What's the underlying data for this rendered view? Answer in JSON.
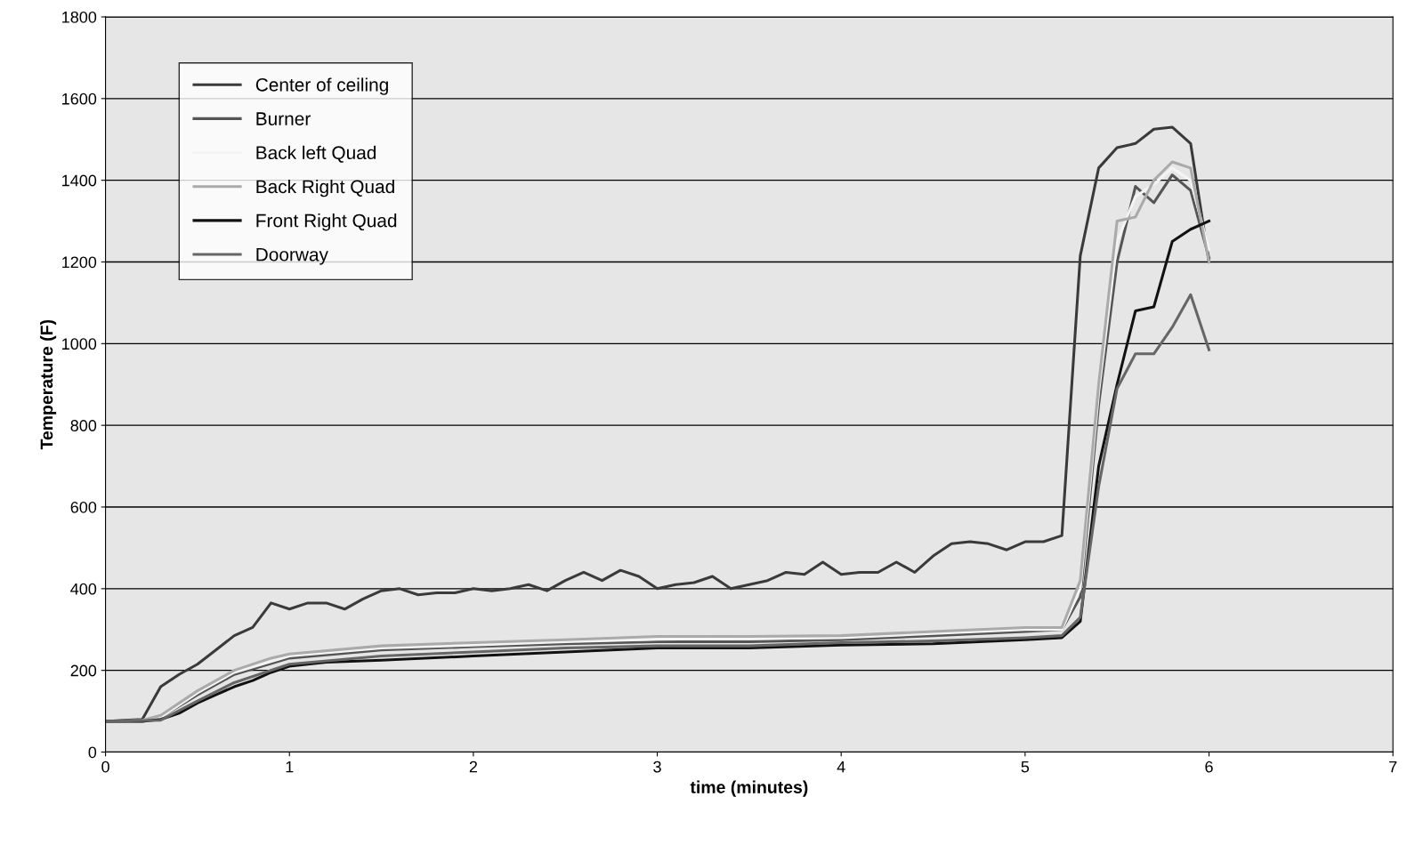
{
  "chart_data": {
    "type": "line",
    "xlabel": "time (minutes)",
    "ylabel": "Temperature (F)",
    "xlim": [
      0,
      7
    ],
    "xticks": [
      0,
      1,
      2,
      3,
      4,
      5,
      6,
      7
    ],
    "ylim": [
      0,
      1800
    ],
    "yticks": [
      0,
      200,
      400,
      600,
      800,
      1000,
      1200,
      1400,
      1600,
      1800
    ],
    "grid": "y",
    "legend": "top left",
    "marker": "none",
    "line_style": "solid",
    "series": [
      {
        "name": "Center of ceiling",
        "color": "#3a3a3a",
        "x": [
          0,
          0.1,
          0.2,
          0.3,
          0.4,
          0.5,
          0.6,
          0.7,
          0.8,
          0.9,
          1.0,
          1.1,
          1.2,
          1.3,
          1.4,
          1.5,
          1.6,
          1.7,
          1.8,
          1.9,
          2.0,
          2.1,
          2.2,
          2.3,
          2.4,
          2.5,
          2.6,
          2.7,
          2.8,
          2.9,
          3.0,
          3.1,
          3.2,
          3.3,
          3.4,
          3.5,
          3.6,
          3.7,
          3.8,
          3.9,
          4.0,
          4.1,
          4.2,
          4.3,
          4.4,
          4.5,
          4.6,
          4.7,
          4.8,
          4.9,
          5.0,
          5.1,
          5.2,
          5.3,
          5.4,
          5.5,
          5.6,
          5.7,
          5.8,
          5.9,
          6.0
        ],
        "values": [
          75,
          78,
          80,
          160,
          190,
          215,
          250,
          285,
          305,
          365,
          350,
          365,
          365,
          350,
          375,
          395,
          400,
          385,
          390,
          390,
          400,
          395,
          400,
          410,
          395,
          420,
          440,
          420,
          445,
          430,
          400,
          410,
          415,
          430,
          400,
          410,
          420,
          440,
          435,
          465,
          435,
          440,
          440,
          465,
          440,
          480,
          510,
          515,
          510,
          495,
          515,
          515,
          530,
          1215,
          1430,
          1480,
          1490,
          1525,
          1530,
          1490,
          1200
        ]
      },
      {
        "name": "Burner",
        "color": "#555555",
        "x": [
          0,
          0.2,
          0.3,
          0.5,
          0.7,
          1.0,
          1.5,
          2.0,
          2.5,
          3.0,
          3.5,
          4.0,
          4.5,
          5.0,
          5.2,
          5.3,
          5.4,
          5.5,
          5.6,
          5.7,
          5.8,
          5.9,
          6.0
        ],
        "values": [
          75,
          75,
          85,
          140,
          190,
          230,
          250,
          258,
          265,
          270,
          270,
          275,
          285,
          295,
          300,
          380,
          850,
          1200,
          1385,
          1345,
          1413,
          1375,
          1210
        ]
      },
      {
        "name": "Back left Quad",
        "color": "#f4f4f4",
        "x": [
          0,
          0.2,
          0.3,
          0.5,
          0.7,
          1.0,
          1.5,
          2.0,
          2.5,
          3.0,
          3.5,
          4.0,
          4.5,
          5.0,
          5.2,
          5.3,
          5.4,
          5.5,
          5.6,
          5.7,
          5.8,
          5.9,
          6.0
        ],
        "values": [
          75,
          75,
          85,
          145,
          195,
          235,
          255,
          262,
          270,
          276,
          278,
          280,
          290,
          300,
          300,
          400,
          880,
          1250,
          1360,
          1390,
          1430,
          1400,
          1230
        ]
      },
      {
        "name": "Back Right Quad",
        "color": "#aaaaaa",
        "x": [
          0,
          0.2,
          0.3,
          0.5,
          0.7,
          0.9,
          1.0,
          1.5,
          2.0,
          2.5,
          3.0,
          3.5,
          4.0,
          4.5,
          5.0,
          5.2,
          5.3,
          5.4,
          5.5,
          5.6,
          5.7,
          5.8,
          5.9,
          6.0
        ],
        "values": [
          75,
          78,
          90,
          150,
          200,
          230,
          240,
          260,
          268,
          275,
          283,
          283,
          285,
          295,
          305,
          305,
          420,
          900,
          1300,
          1310,
          1400,
          1445,
          1430,
          1200
        ]
      },
      {
        "name": "Front Right Quad",
        "color": "#111111",
        "x": [
          0,
          0.2,
          0.3,
          0.4,
          0.5,
          0.6,
          0.7,
          0.8,
          0.9,
          1.0,
          1.2,
          1.5,
          2.0,
          2.5,
          3.0,
          3.5,
          4.0,
          4.5,
          5.0,
          5.2,
          5.3,
          5.4,
          5.5,
          5.6,
          5.7,
          5.8,
          5.9,
          6.0
        ],
        "values": [
          75,
          75,
          80,
          95,
          120,
          140,
          160,
          175,
          195,
          210,
          220,
          225,
          235,
          245,
          255,
          255,
          262,
          265,
          275,
          280,
          320,
          700,
          900,
          1080,
          1090,
          1250,
          1280,
          1300
        ]
      },
      {
        "name": "Doorway",
        "color": "#666666",
        "x": [
          0,
          0.3,
          0.5,
          0.7,
          1.0,
          1.5,
          2.0,
          2.5,
          3.0,
          3.5,
          4.0,
          4.5,
          5.0,
          5.2,
          5.3,
          5.4,
          5.5,
          5.6,
          5.7,
          5.8,
          5.9,
          6.0
        ],
        "values": [
          75,
          78,
          125,
          170,
          215,
          235,
          245,
          255,
          260,
          260,
          268,
          272,
          280,
          285,
          330,
          650,
          890,
          975,
          975,
          1040,
          1120,
          985
        ]
      }
    ]
  }
}
